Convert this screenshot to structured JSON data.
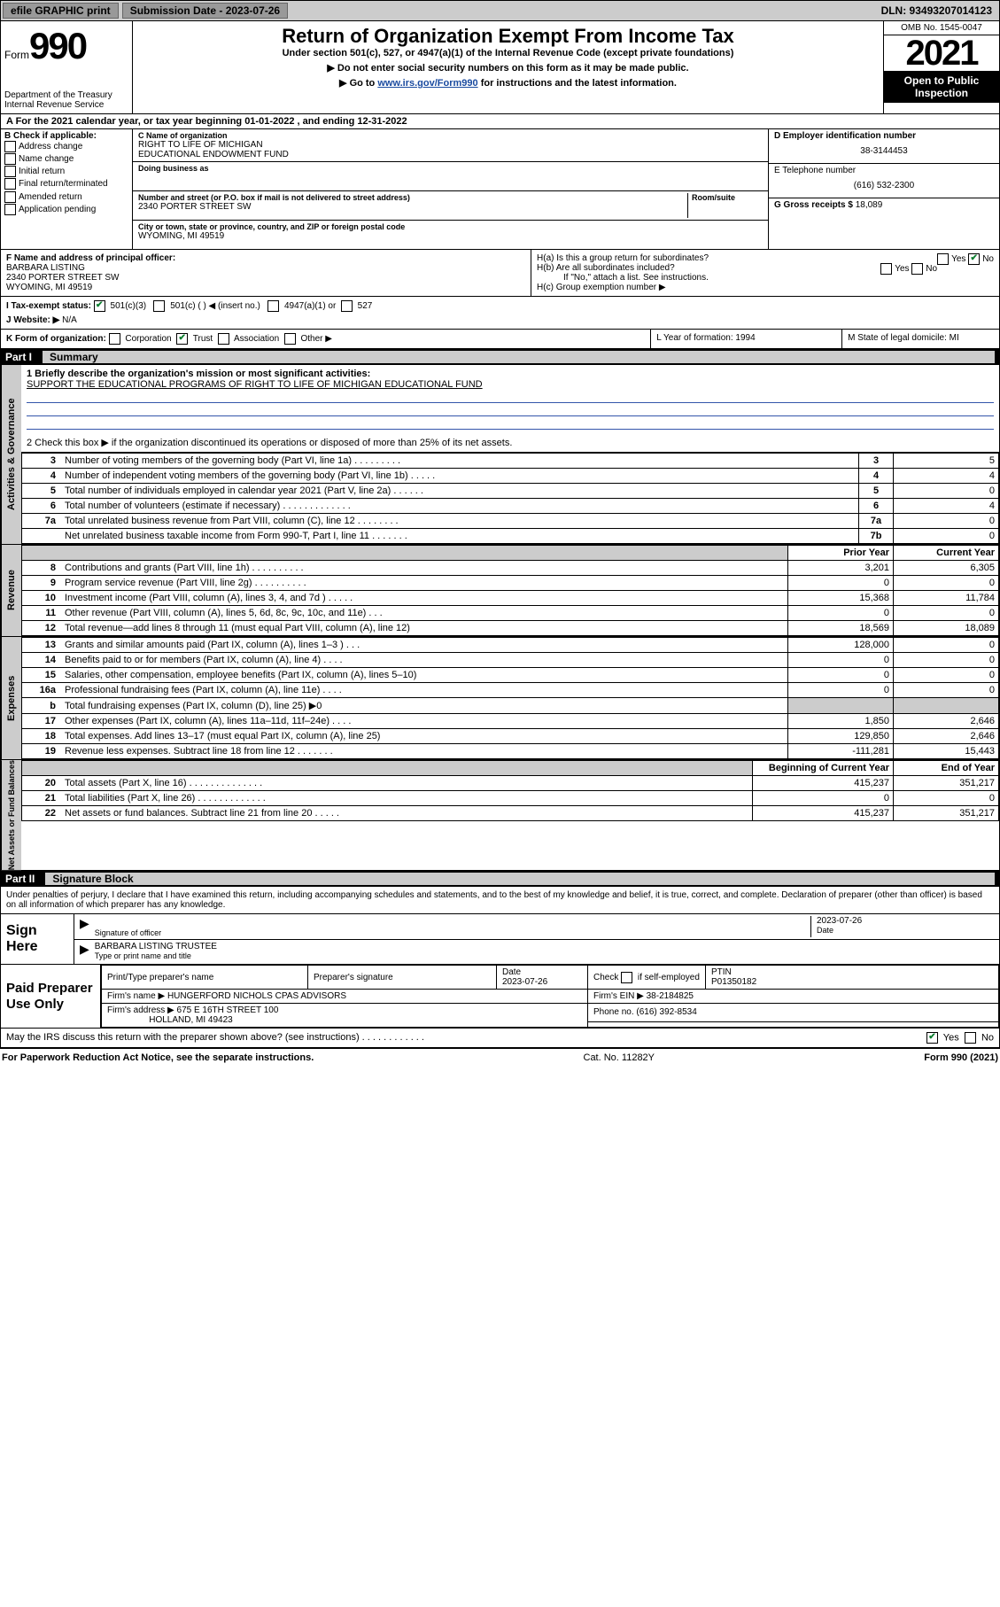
{
  "topbar": {
    "efile": "efile GRAPHIC print",
    "submission_label": "Submission Date - 2023-07-26",
    "dln": "DLN: 93493207014123"
  },
  "header": {
    "form_word": "Form",
    "form_no": "990",
    "dept": "Department of the Treasury",
    "irs": "Internal Revenue Service",
    "title": "Return of Organization Exempt From Income Tax",
    "sub1": "Under section 501(c), 527, or 4947(a)(1) of the Internal Revenue Code (except private foundations)",
    "sub2": "▶ Do not enter social security numbers on this form as it may be made public.",
    "sub3_pre": "▶ Go to ",
    "sub3_link": "www.irs.gov/Form990",
    "sub3_post": " for instructions and the latest information.",
    "omb": "OMB No. 1545-0047",
    "year": "2021",
    "open": "Open to Public Inspection"
  },
  "periodA": "A For the 2021 calendar year, or tax year beginning 01-01-2022    , and ending 12-31-2022",
  "boxB": {
    "heading": "B Check if applicable:",
    "items": [
      "Address change",
      "Name change",
      "Initial return",
      "Final return/terminated",
      "Amended return",
      "Application pending"
    ]
  },
  "boxC": {
    "name_label": "C Name of organization",
    "name1": "RIGHT TO LIFE OF MICHIGAN",
    "name2": "EDUCATIONAL ENDOWMENT FUND",
    "dba_label": "Doing business as",
    "addr_label": "Number and street (or P.O. box if mail is not delivered to street address)",
    "room_label": "Room/suite",
    "addr": "2340 PORTER STREET SW",
    "city_label": "City or town, state or province, country, and ZIP or foreign postal code",
    "city": "WYOMING, MI  49519"
  },
  "boxD": {
    "ein_label": "D Employer identification number",
    "ein": "38-3144453",
    "phone_label": "E Telephone number",
    "phone": "(616) 532-2300",
    "gross_label": "G Gross receipts $",
    "gross": "18,089"
  },
  "rowF": {
    "f_label": "F  Name and address of principal officer:",
    "f_name": "BARBARA LISTING",
    "f_addr1": "2340 PORTER STREET SW",
    "f_addr2": "WYOMING, MI  49519",
    "ha": "H(a)  Is this a group return for subordinates?",
    "hb": "H(b)  Are all subordinates included?",
    "hnote": "If \"No,\" attach a list. See instructions.",
    "hc": "H(c)  Group exemption number ▶",
    "yes": "Yes",
    "no": "No"
  },
  "rowI": {
    "label": "I    Tax-exempt status:",
    "opt1": "501(c)(3)",
    "opt2": "501(c) (  ) ◀ (insert no.)",
    "opt3": "4947(a)(1) or",
    "opt4": "527",
    "j_label": "J    Website: ▶",
    "j_val": "N/A"
  },
  "rowK": {
    "label": "K Form of organization:",
    "opts": [
      "Corporation",
      "Trust",
      "Association",
      "Other ▶"
    ],
    "checked": 1,
    "L": "L Year of formation: 1994",
    "M": "M State of legal domicile: MI"
  },
  "part1": {
    "label": "Part I",
    "name": "Summary",
    "mission_lead": "1  Briefly describe the organization's mission or most significant activities:",
    "mission_text": "SUPPORT THE EDUCATIONAL PROGRAMS OF RIGHT TO LIFE OF MICHIGAN EDUCATIONAL FUND",
    "line2": "2   Check this box ▶        if the organization discontinued its operations or disposed of more than 25% of its net assets.",
    "gov_rows": [
      {
        "n": "3",
        "desc": "Number of voting members of the governing body (Part VI, line 1a)   .    .    .    .    .    .    .    .    .",
        "box": "3",
        "val": "5"
      },
      {
        "n": "4",
        "desc": "Number of independent voting members of the governing body (Part VI, line 1b)   .    .    .    .    .",
        "box": "4",
        "val": "4"
      },
      {
        "n": "5",
        "desc": "Total number of individuals employed in calendar year 2021 (Part V, line 2a)   .    .    .    .    .    .",
        "box": "5",
        "val": "0"
      },
      {
        "n": "6",
        "desc": "Total number of volunteers (estimate if necessary)   .    .    .    .    .    .    .    .    .    .    .    .    .",
        "box": "6",
        "val": "4"
      },
      {
        "n": "7a",
        "desc": "Total unrelated business revenue from Part VIII, column (C), line 12   .    .    .    .    .    .    .    .",
        "box": "7a",
        "val": "0"
      },
      {
        "n": "",
        "desc": "Net unrelated business taxable income from Form 990-T, Part I, line 11   .    .    .    .    .    .    .",
        "box": "7b",
        "val": "0"
      }
    ],
    "py_header": "Prior Year",
    "cy_header": "Current Year",
    "rev_rows": [
      {
        "n": "8",
        "desc": "Contributions and grants (Part VIII, line 1h)   .    .    .    .    .    .    .    .    .    .",
        "py": "3,201",
        "cy": "6,305"
      },
      {
        "n": "9",
        "desc": "Program service revenue (Part VIII, line 2g)   .    .    .    .    .    .    .    .    .    .",
        "py": "0",
        "cy": "0"
      },
      {
        "n": "10",
        "desc": "Investment income (Part VIII, column (A), lines 3, 4, and 7d )   .    .    .    .    .",
        "py": "15,368",
        "cy": "11,784"
      },
      {
        "n": "11",
        "desc": "Other revenue (Part VIII, column (A), lines 5, 6d, 8c, 9c, 10c, and 11e)   .    .    .",
        "py": "0",
        "cy": "0"
      },
      {
        "n": "12",
        "desc": "Total revenue—add lines 8 through 11 (must equal Part VIII, column (A), line 12)",
        "py": "18,569",
        "cy": "18,089"
      }
    ],
    "exp_rows": [
      {
        "n": "13",
        "desc": "Grants and similar amounts paid (Part IX, column (A), lines 1–3 )   .    .    .",
        "py": "128,000",
        "cy": "0"
      },
      {
        "n": "14",
        "desc": "Benefits paid to or for members (Part IX, column (A), line 4)   .    .    .    .",
        "py": "0",
        "cy": "0"
      },
      {
        "n": "15",
        "desc": "Salaries, other compensation, employee benefits (Part IX, column (A), lines 5–10)",
        "py": "0",
        "cy": "0"
      },
      {
        "n": "16a",
        "desc": "Professional fundraising fees (Part IX, column (A), line 11e)   .    .    .    .",
        "py": "0",
        "cy": "0"
      },
      {
        "n": "b",
        "desc": "Total fundraising expenses (Part IX, column (D), line 25) ▶0",
        "py": "",
        "cy": "",
        "shade": true
      },
      {
        "n": "17",
        "desc": "Other expenses (Part IX, column (A), lines 11a–11d, 11f–24e)   .    .    .    .",
        "py": "1,850",
        "cy": "2,646"
      },
      {
        "n": "18",
        "desc": "Total expenses. Add lines 13–17 (must equal Part IX, column (A), line 25)",
        "py": "129,850",
        "cy": "2,646"
      },
      {
        "n": "19",
        "desc": "Revenue less expenses. Subtract line 18 from line 12   .    .    .    .    .    .    .",
        "py": "-111,281",
        "cy": "15,443"
      }
    ],
    "bcy_header": "Beginning of Current Year",
    "eoy_header": "End of Year",
    "na_rows": [
      {
        "n": "20",
        "desc": "Total assets (Part X, line 16)   .    .    .    .    .    .    .    .    .    .    .    .    .    .",
        "py": "415,237",
        "cy": "351,217"
      },
      {
        "n": "21",
        "desc": "Total liabilities (Part X, line 26)   .    .    .    .    .    .    .    .    .    .    .    .    .",
        "py": "0",
        "cy": "0"
      },
      {
        "n": "22",
        "desc": "Net assets or fund balances. Subtract line 21 from line 20   .    .    .    .    .",
        "py": "415,237",
        "cy": "351,217"
      }
    ],
    "vtabs": {
      "gov": "Activities & Governance",
      "rev": "Revenue",
      "exp": "Expenses",
      "na": "Net Assets or Fund Balances"
    }
  },
  "part2": {
    "label": "Part II",
    "name": "Signature Block",
    "perjury": "Under penalties of perjury, I declare that I have examined this return, including accompanying schedules and statements, and to the best of my knowledge and belief, it is true, correct, and complete. Declaration of preparer (other than officer) is based on all information of which preparer has any knowledge.",
    "sign_here": "Sign Here",
    "sig_officer": "Signature of officer",
    "sig_date": "2023-07-26",
    "date_lbl": "Date",
    "officer_name": "BARBARA LISTING  TRUSTEE",
    "officer_lbl": "Type or print name and title",
    "paid": "Paid Preparer Use Only",
    "prep_name_lbl": "Print/Type preparer's name",
    "prep_sig_lbl": "Preparer's signature",
    "prep_date_lbl": "Date",
    "prep_date": "2023-07-26",
    "self_emp": "Check          if self-employed",
    "ptin_lbl": "PTIN",
    "ptin": "P01350182",
    "firm_name_lbl": "Firm's name     ▶",
    "firm_name": "HUNGERFORD NICHOLS CPAS ADVISORS",
    "firm_ein_lbl": "Firm's EIN ▶",
    "firm_ein": "38-2184825",
    "firm_addr_lbl": "Firm's address ▶",
    "firm_addr1": "675 E 16TH STREET 100",
    "firm_addr2": "HOLLAND, MI  49423",
    "firm_phone_lbl": "Phone no.",
    "firm_phone": "(616) 392-8534",
    "may_irs": "May the IRS discuss this return with the preparer shown above? (see instructions)    .    .    .    .    .    .    .    .    .    .    .    .",
    "yes": "Yes",
    "no": "No"
  },
  "footer": {
    "left": "For Paperwork Reduction Act Notice, see the separate instructions.",
    "mid": "Cat. No. 11282Y",
    "right": "Form 990 (2021)"
  }
}
